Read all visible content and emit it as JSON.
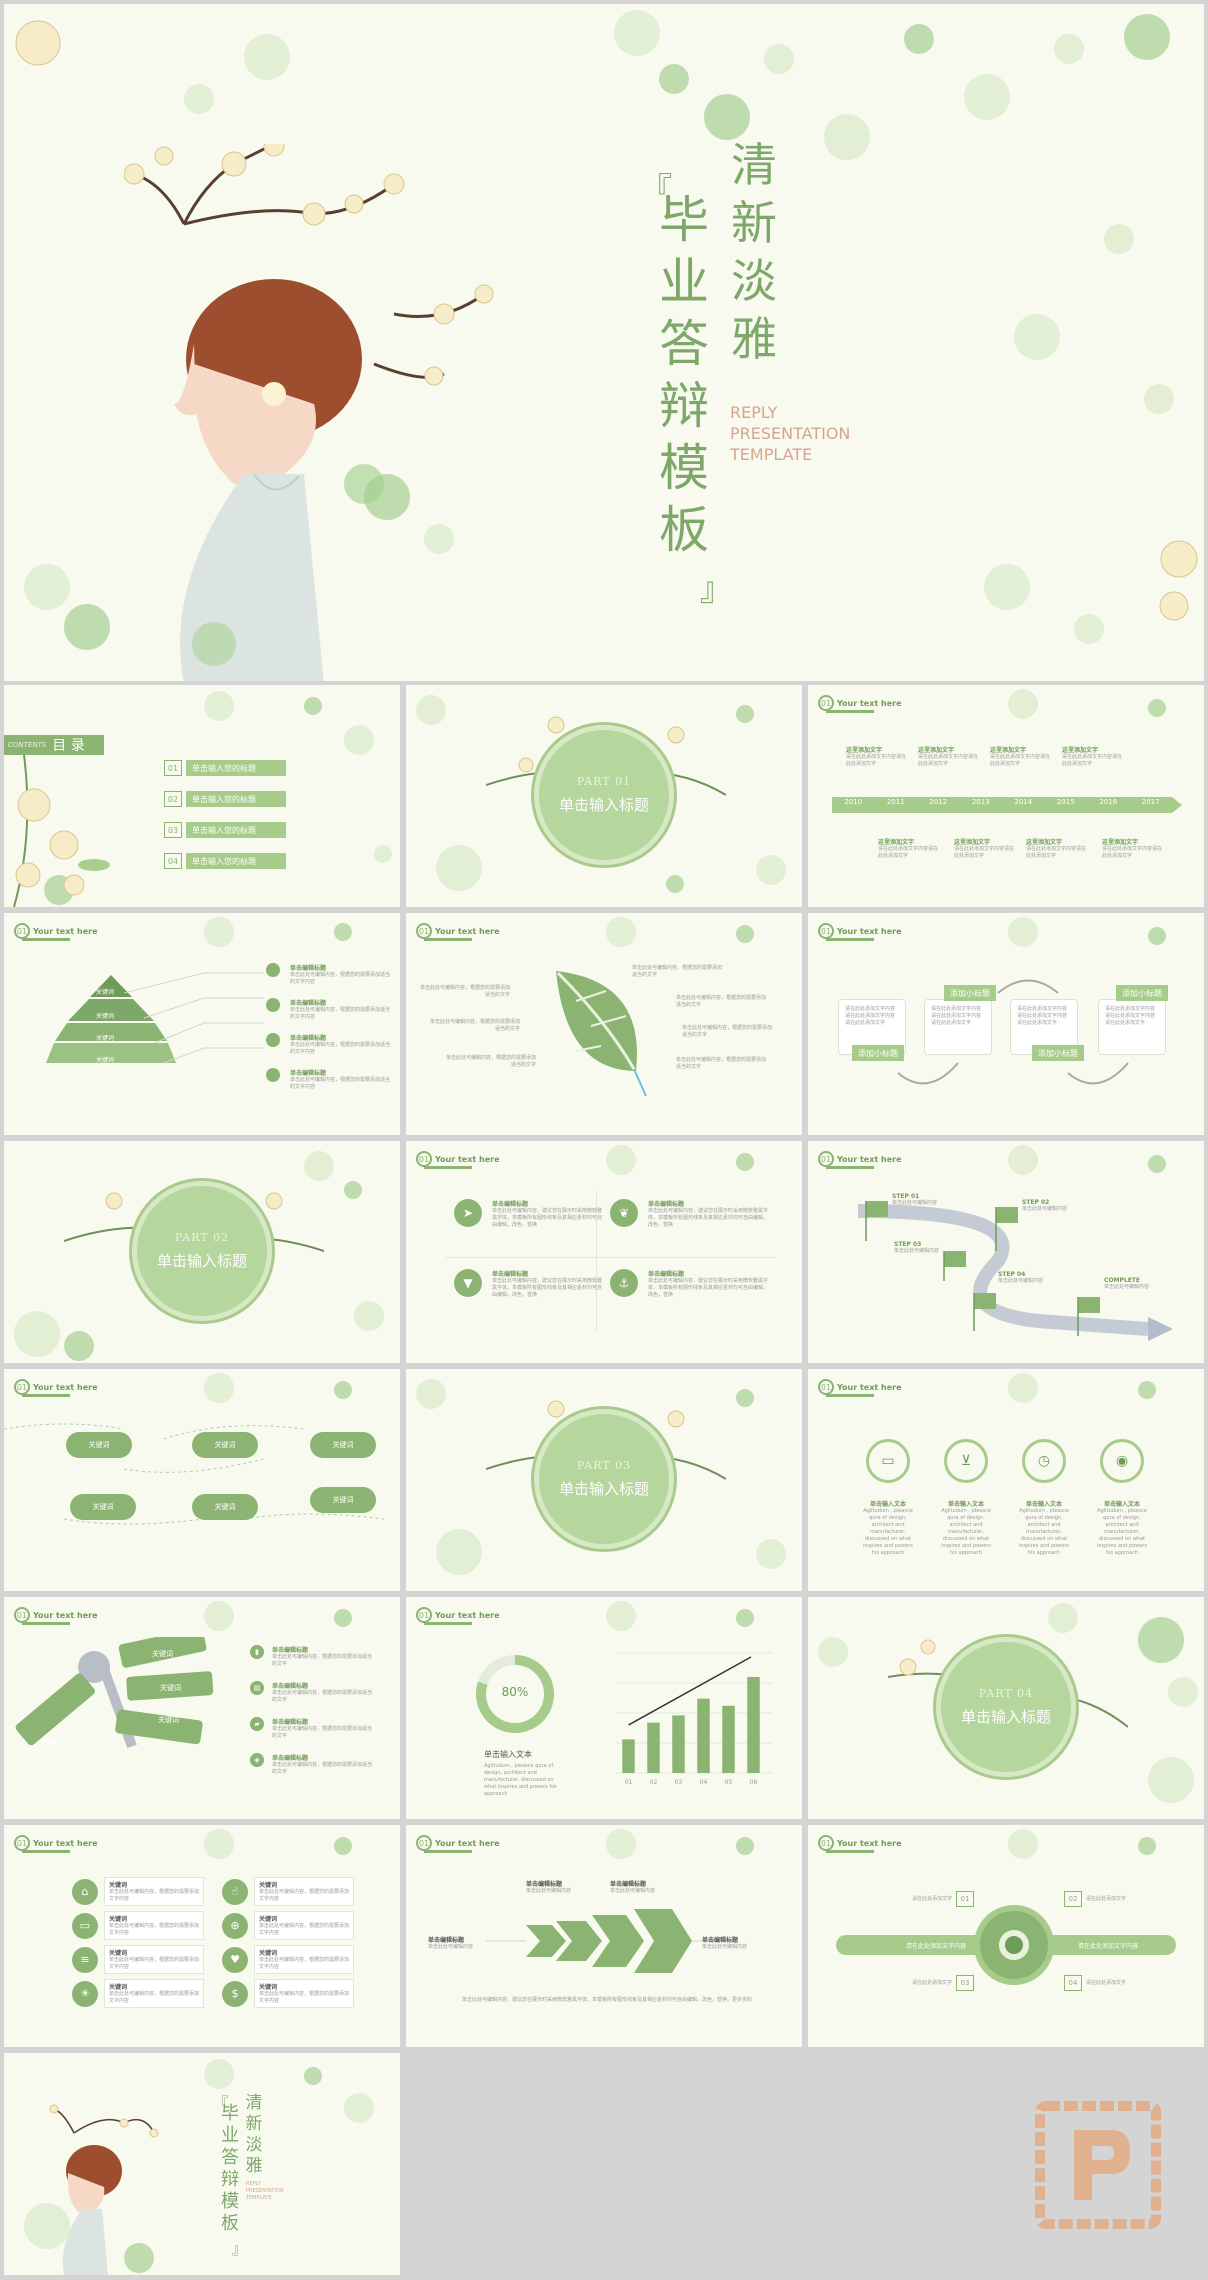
{
  "cover": {
    "title_chars": [
      "毕",
      "业",
      "答",
      "辩",
      "模",
      "板"
    ],
    "subtitle_chars": [
      "清",
      "新",
      "淡",
      "雅"
    ],
    "bracket_open": "『",
    "bracket_close": "』",
    "english_lines": [
      "REPLY",
      "PRESENTATION",
      "TEMPLATE"
    ]
  },
  "header_text": "Your text here",
  "header_num": "01",
  "toc": {
    "side_word": "CONTENTS",
    "title": "目 录",
    "items": [
      {
        "num": "01",
        "label": "单击输入您的标题"
      },
      {
        "num": "02",
        "label": "单击输入您的标题"
      },
      {
        "num": "03",
        "label": "单击输入您的标题"
      },
      {
        "num": "04",
        "label": "单击输入您的标题"
      }
    ]
  },
  "parts": [
    {
      "num": "PART 01",
      "title": "单击输入标题"
    },
    {
      "num": "PART 02",
      "title": "单击输入标题"
    },
    {
      "num": "PART 03",
      "title": "单击输入标题"
    },
    {
      "num": "PART 04",
      "title": "单击输入标题"
    }
  ],
  "timeline": {
    "years": [
      "2010",
      "2011",
      "2012",
      "2013",
      "2014",
      "2015",
      "2016",
      "2017"
    ],
    "top_title": "这里添加文字",
    "top_body": "请在此处添加文字内容请在此处添加文字",
    "bottom_title": "这里添加文字",
    "bottom_body": "请在此处添加文字内容请在此处添加文字"
  },
  "pyramid": {
    "levels": [
      "关键词",
      "关键词",
      "关键词",
      "关键词"
    ],
    "item_title": "单击编辑标题",
    "item_body": "单击此处可编辑内容，根据您的需要添加适当的文字内容"
  },
  "leaf": {
    "body": "单击此处可编辑内容，根据您的需要添加适当的文字"
  },
  "flow": {
    "box_label": "添加小标题",
    "body": "请在此处添加文字内容请在此处添加文字内容请在此处添加文字"
  },
  "quad": {
    "title": "单击编辑标题",
    "body": "单击此处可编辑内容，建议您在展示时采用微软雅黑字体，本模板所有图形线条及其相应素材均可自由编辑，改色，替换"
  },
  "steps": {
    "labels": [
      "STEP 01",
      "STEP 02",
      "STEP 03",
      "STEP 04",
      "COMPLETE"
    ],
    "body": "单击此处可编辑内容"
  },
  "clouds": {
    "label": "关键词"
  },
  "icons4": {
    "title": "单击输入文本",
    "body": "Aglitudum , pleasce qura of design, architect and manufacturer, discussed on what inspires and powers his approach"
  },
  "keys": {
    "tags": [
      "关键词",
      "关键词",
      "关键词",
      "关键词"
    ],
    "item_title": "单击编辑标题",
    "item_body": "单击此处可编辑内容，根据您的需要添加适当的文字"
  },
  "chart_data": {
    "type": "bar",
    "categories": [
      "01",
      "02",
      "03",
      "04",
      "05",
      "06"
    ],
    "values": [
      28,
      42,
      48,
      62,
      56,
      80
    ],
    "title": "",
    "xlabel": "",
    "ylabel": "",
    "ylim": [
      0,
      100
    ],
    "donut_label": "80%",
    "donut_value": 80,
    "caption": "单击输入文本",
    "caption_body": "Aglitudum , pleasce qura of design, architect and manufacturer, discussed on what inspires and powers his approach"
  },
  "iconlist": {
    "title": "关键词",
    "body": "单击此处可编辑内容，根据您的需要添加文字内容"
  },
  "arrows": {
    "title": "单击编辑标题",
    "body": "单击此处可编辑内容",
    "footer": "单击此处可编辑内容，建议您在展示时采用微软雅黑字体，本模板所有图形线条及其相应素材均可自由编辑，改色，替换。更多资料"
  },
  "hub": {
    "nums": [
      "01",
      "02",
      "03",
      "04"
    ],
    "label": "请在此处添加文字",
    "bar_left": "请在此处添加文字内容",
    "bar_right": "请在此处添加文字内容"
  },
  "colors": {
    "accent": "#8bb472",
    "accent_light": "#b5d69c",
    "bg": "#f8faf0",
    "title_green": "#7ea86a",
    "english_pink": "#d6a48f"
  }
}
